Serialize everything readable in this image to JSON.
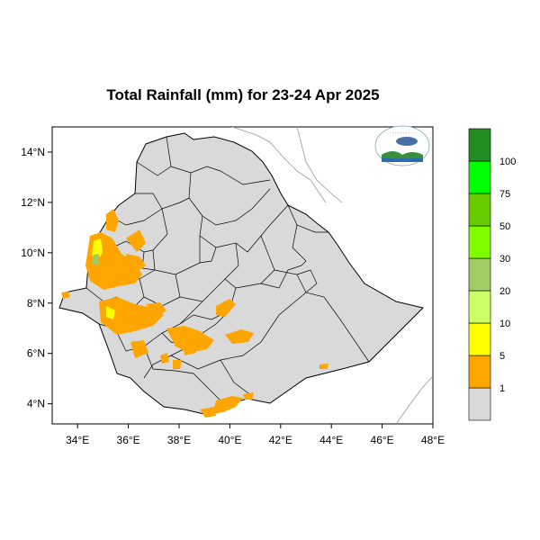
{
  "title": "Total Rainfall (mm) for 23-24 Apr 2025",
  "map": {
    "lon_range": [
      33,
      48
    ],
    "lat_range": [
      3.2,
      15
    ]
  },
  "lon_ticks": [
    "34°E",
    "36°E",
    "38°E",
    "40°E",
    "42°E",
    "44°E",
    "46°E",
    "48°E"
  ],
  "lat_ticks": [
    "4°N",
    "6°N",
    "8°N",
    "10°N",
    "12°N",
    "14°N"
  ],
  "legend": {
    "labels": [
      "1",
      "5",
      "10",
      "20",
      "30",
      "50",
      "75",
      "100"
    ],
    "colors": [
      "#d9d9d9",
      "#ffa500",
      "#ffff00",
      "#ccff66",
      "#a1cc66",
      "#80ff00",
      "#66cc00",
      "#00ff00",
      "#228b22"
    ]
  },
  "colors": {
    "land": "#d9d9d9",
    "rain_1_5": "#ffa500",
    "rain_5_10": "#ffff00",
    "rain_30_50": "#a1cc66"
  }
}
